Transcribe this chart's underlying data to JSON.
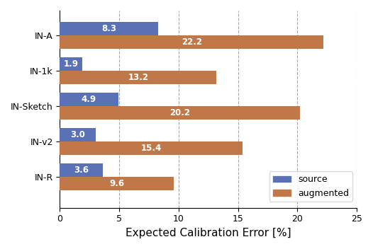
{
  "categories": [
    "IN-A",
    "IN-1k",
    "IN-Sketch",
    "IN-v2",
    "IN-R"
  ],
  "source_values": [
    8.3,
    1.9,
    4.9,
    3.0,
    3.6
  ],
  "augmented_values": [
    22.2,
    13.2,
    20.2,
    15.4,
    9.6
  ],
  "source_color": "#5a72b5",
  "augmented_color": "#c07848",
  "xlabel": "Expected Calibration Error [%]",
  "xlim": [
    0,
    25
  ],
  "xticks": [
    0,
    5,
    10,
    15,
    20,
    25
  ],
  "grid_positions": [
    5,
    10,
    15,
    20,
    25
  ],
  "bar_height": 0.38,
  "label_source": "source",
  "label_augmented": "augmented",
  "label_fontsize": 9,
  "value_fontsize": 8.5,
  "tick_fontsize": 9,
  "xlabel_fontsize": 11
}
